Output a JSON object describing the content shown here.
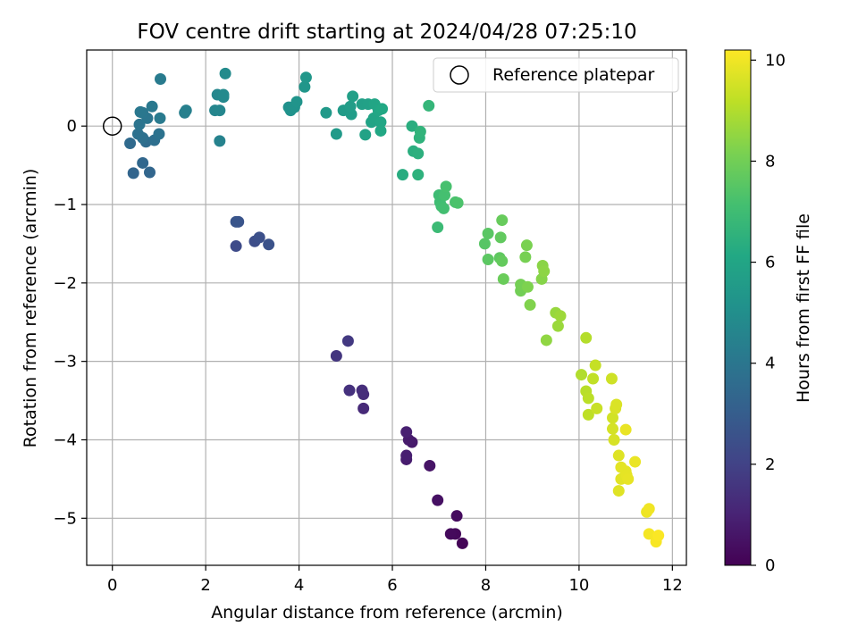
{
  "chart_data": {
    "type": "scatter",
    "title": "FOV centre drift starting at 2024/04/28 07:25:10",
    "xlabel": "Angular distance from reference (arcmin)",
    "ylabel": "Rotation from reference (arcmin)",
    "xlim": [
      -0.55,
      12.3
    ],
    "ylim": [
      -5.6,
      0.97
    ],
    "x_ticks": [
      0,
      2,
      4,
      6,
      8,
      10,
      12
    ],
    "y_ticks": [
      0,
      -1,
      -2,
      -3,
      -4,
      -5
    ],
    "x_tick_labels": [
      "0",
      "2",
      "4",
      "6",
      "8",
      "10",
      "12"
    ],
    "y_tick_labels": [
      "0",
      "−1",
      "−2",
      "−3",
      "−4",
      "−5"
    ],
    "grid": true,
    "colormap": "viridis",
    "colorbar": {
      "label": "Hours from first FF file",
      "range": [
        0,
        10.2
      ],
      "ticks": [
        0,
        2,
        4,
        6,
        8,
        10
      ],
      "tick_labels": [
        "0",
        "2",
        "4",
        "6",
        "8",
        "10"
      ]
    },
    "legend": {
      "position": "top-right",
      "entries": [
        "Reference platepar"
      ]
    },
    "reference_point": {
      "x": 0,
      "y": 0
    },
    "points": [
      {
        "x": 7.5,
        "y": -5.32,
        "t": 0.1
      },
      {
        "x": 7.35,
        "y": -5.2,
        "t": 0.2
      },
      {
        "x": 7.25,
        "y": -5.2,
        "t": 0.25
      },
      {
        "x": 7.38,
        "y": -4.97,
        "t": 0.3
      },
      {
        "x": 6.97,
        "y": -4.77,
        "t": 0.45
      },
      {
        "x": 6.8,
        "y": -4.33,
        "t": 0.55
      },
      {
        "x": 6.42,
        "y": -4.03,
        "t": 0.7
      },
      {
        "x": 6.35,
        "y": -4.0,
        "t": 0.75
      },
      {
        "x": 6.3,
        "y": -4.25,
        "t": 0.8
      },
      {
        "x": 6.3,
        "y": -4.2,
        "t": 0.85
      },
      {
        "x": 6.3,
        "y": -3.9,
        "t": 0.9
      },
      {
        "x": 5.38,
        "y": -3.6,
        "t": 1.2
      },
      {
        "x": 5.38,
        "y": -3.42,
        "t": 1.3
      },
      {
        "x": 5.35,
        "y": -3.37,
        "t": 1.35
      },
      {
        "x": 5.08,
        "y": -3.37,
        "t": 1.45
      },
      {
        "x": 4.8,
        "y": -2.93,
        "t": 1.6
      },
      {
        "x": 5.05,
        "y": -2.74,
        "t": 1.7
      },
      {
        "x": 2.65,
        "y": -1.53,
        "t": 2.3
      },
      {
        "x": 3.05,
        "y": -1.47,
        "t": 2.4
      },
      {
        "x": 3.15,
        "y": -1.42,
        "t": 2.5
      },
      {
        "x": 3.35,
        "y": -1.51,
        "t": 2.55
      },
      {
        "x": 2.7,
        "y": -1.22,
        "t": 2.65
      },
      {
        "x": 2.65,
        "y": -1.22,
        "t": 2.7
      },
      {
        "x": 0.45,
        "y": -0.6,
        "t": 3.3
      },
      {
        "x": 0.8,
        "y": -0.59,
        "t": 3.35
      },
      {
        "x": 0.65,
        "y": -0.47,
        "t": 3.4
      },
      {
        "x": 0.38,
        "y": -0.22,
        "t": 3.5
      },
      {
        "x": 0.72,
        "y": -0.2,
        "t": 3.6
      },
      {
        "x": 0.9,
        "y": -0.18,
        "t": 3.7
      },
      {
        "x": 0.65,
        "y": -0.15,
        "t": 3.75
      },
      {
        "x": 0.55,
        "y": -0.1,
        "t": 3.8
      },
      {
        "x": 1.0,
        "y": -0.1,
        "t": 3.85
      },
      {
        "x": 0.58,
        "y": 0.02,
        "t": 3.9
      },
      {
        "x": 0.75,
        "y": 0.1,
        "t": 3.95
      },
      {
        "x": 0.65,
        "y": 0.17,
        "t": 4.0
      },
      {
        "x": 0.6,
        "y": 0.18,
        "t": 4.05
      },
      {
        "x": 0.85,
        "y": 0.25,
        "t": 4.1
      },
      {
        "x": 1.02,
        "y": 0.1,
        "t": 4.15
      },
      {
        "x": 1.03,
        "y": 0.6,
        "t": 4.2
      },
      {
        "x": 1.55,
        "y": 0.17,
        "t": 4.35
      },
      {
        "x": 1.58,
        "y": 0.2,
        "t": 4.4
      },
      {
        "x": 2.3,
        "y": -0.19,
        "t": 4.5
      },
      {
        "x": 2.2,
        "y": 0.2,
        "t": 4.6
      },
      {
        "x": 2.3,
        "y": 0.2,
        "t": 4.65
      },
      {
        "x": 2.25,
        "y": 0.4,
        "t": 4.7
      },
      {
        "x": 2.38,
        "y": 0.37,
        "t": 4.75
      },
      {
        "x": 2.38,
        "y": 0.4,
        "t": 4.8
      },
      {
        "x": 2.42,
        "y": 0.67,
        "t": 4.85
      },
      {
        "x": 3.78,
        "y": 0.24,
        "t": 5.1
      },
      {
        "x": 3.82,
        "y": 0.2,
        "t": 5.15
      },
      {
        "x": 3.9,
        "y": 0.24,
        "t": 5.2
      },
      {
        "x": 3.95,
        "y": 0.31,
        "t": 5.25
      },
      {
        "x": 4.12,
        "y": 0.5,
        "t": 5.3
      },
      {
        "x": 4.15,
        "y": 0.62,
        "t": 5.35
      },
      {
        "x": 4.58,
        "y": 0.17,
        "t": 5.45
      },
      {
        "x": 4.8,
        "y": -0.1,
        "t": 5.5
      },
      {
        "x": 4.95,
        "y": 0.2,
        "t": 5.55
      },
      {
        "x": 5.12,
        "y": 0.15,
        "t": 5.6
      },
      {
        "x": 5.1,
        "y": 0.25,
        "t": 5.65
      },
      {
        "x": 5.15,
        "y": 0.38,
        "t": 5.7
      },
      {
        "x": 5.35,
        "y": 0.28,
        "t": 5.75
      },
      {
        "x": 5.48,
        "y": 0.28,
        "t": 5.8
      },
      {
        "x": 5.42,
        "y": -0.11,
        "t": 5.85
      },
      {
        "x": 5.55,
        "y": 0.05,
        "t": 5.9
      },
      {
        "x": 5.6,
        "y": 0.1,
        "t": 5.95
      },
      {
        "x": 5.62,
        "y": 0.28,
        "t": 6.0
      },
      {
        "x": 5.7,
        "y": 0.2,
        "t": 6.02
      },
      {
        "x": 5.75,
        "y": 0.05,
        "t": 6.05
      },
      {
        "x": 5.75,
        "y": -0.06,
        "t": 6.08
      },
      {
        "x": 5.78,
        "y": 0.22,
        "t": 6.1
      },
      {
        "x": 6.22,
        "y": -0.62,
        "t": 6.3
      },
      {
        "x": 6.42,
        "y": 0.0,
        "t": 6.35
      },
      {
        "x": 6.45,
        "y": -0.32,
        "t": 6.4
      },
      {
        "x": 6.55,
        "y": -0.35,
        "t": 6.45
      },
      {
        "x": 6.55,
        "y": -0.62,
        "t": 6.5
      },
      {
        "x": 6.58,
        "y": -0.15,
        "t": 6.55
      },
      {
        "x": 6.6,
        "y": -0.07,
        "t": 6.6
      },
      {
        "x": 6.78,
        "y": 0.26,
        "t": 6.7
      },
      {
        "x": 6.97,
        "y": -1.29,
        "t": 6.9
      },
      {
        "x": 7.0,
        "y": -0.88,
        "t": 6.95
      },
      {
        "x": 7.02,
        "y": -0.97,
        "t": 7.0
      },
      {
        "x": 7.05,
        "y": -1.02,
        "t": 7.05
      },
      {
        "x": 7.1,
        "y": -1.05,
        "t": 7.1
      },
      {
        "x": 7.12,
        "y": -0.88,
        "t": 7.15
      },
      {
        "x": 7.15,
        "y": -0.77,
        "t": 7.2
      },
      {
        "x": 7.35,
        "y": -0.97,
        "t": 7.25
      },
      {
        "x": 7.4,
        "y": -0.98,
        "t": 7.3
      },
      {
        "x": 7.98,
        "y": -1.5,
        "t": 7.5
      },
      {
        "x": 8.05,
        "y": -1.37,
        "t": 7.55
      },
      {
        "x": 8.05,
        "y": -1.7,
        "t": 7.6
      },
      {
        "x": 8.3,
        "y": -1.68,
        "t": 7.65
      },
      {
        "x": 8.32,
        "y": -1.42,
        "t": 7.7
      },
      {
        "x": 8.35,
        "y": -1.72,
        "t": 7.75
      },
      {
        "x": 8.35,
        "y": -1.2,
        "t": 7.8
      },
      {
        "x": 8.38,
        "y": -1.95,
        "t": 7.85
      },
      {
        "x": 8.75,
        "y": -2.1,
        "t": 8.0
      },
      {
        "x": 8.75,
        "y": -2.02,
        "t": 8.05
      },
      {
        "x": 8.85,
        "y": -1.67,
        "t": 8.1
      },
      {
        "x": 8.88,
        "y": -1.52,
        "t": 8.15
      },
      {
        "x": 8.9,
        "y": -2.05,
        "t": 8.2
      },
      {
        "x": 8.95,
        "y": -2.28,
        "t": 8.25
      },
      {
        "x": 9.2,
        "y": -1.95,
        "t": 8.35
      },
      {
        "x": 9.22,
        "y": -1.78,
        "t": 8.4
      },
      {
        "x": 9.25,
        "y": -1.85,
        "t": 8.45
      },
      {
        "x": 9.3,
        "y": -2.73,
        "t": 8.5
      },
      {
        "x": 9.5,
        "y": -2.38,
        "t": 8.6
      },
      {
        "x": 9.55,
        "y": -2.55,
        "t": 8.65
      },
      {
        "x": 9.6,
        "y": -2.42,
        "t": 8.7
      },
      {
        "x": 10.05,
        "y": -3.17,
        "t": 9.0
      },
      {
        "x": 10.15,
        "y": -2.7,
        "t": 9.05
      },
      {
        "x": 10.15,
        "y": -3.38,
        "t": 9.1
      },
      {
        "x": 10.2,
        "y": -3.47,
        "t": 9.15
      },
      {
        "x": 10.2,
        "y": -3.68,
        "t": 9.2
      },
      {
        "x": 10.3,
        "y": -3.22,
        "t": 9.25
      },
      {
        "x": 10.35,
        "y": -3.05,
        "t": 9.3
      },
      {
        "x": 10.38,
        "y": -3.6,
        "t": 9.35
      },
      {
        "x": 10.7,
        "y": -3.22,
        "t": 9.45
      },
      {
        "x": 10.72,
        "y": -3.72,
        "t": 9.5
      },
      {
        "x": 10.72,
        "y": -3.86,
        "t": 9.55
      },
      {
        "x": 10.75,
        "y": -4.0,
        "t": 9.6
      },
      {
        "x": 10.78,
        "y": -3.6,
        "t": 9.62
      },
      {
        "x": 10.8,
        "y": -3.55,
        "t": 9.65
      },
      {
        "x": 10.85,
        "y": -4.2,
        "t": 9.7
      },
      {
        "x": 10.85,
        "y": -4.65,
        "t": 9.72
      },
      {
        "x": 10.9,
        "y": -4.5,
        "t": 9.75
      },
      {
        "x": 10.9,
        "y": -4.35,
        "t": 9.78
      },
      {
        "x": 11.0,
        "y": -4.4,
        "t": 9.8
      },
      {
        "x": 11.02,
        "y": -4.45,
        "t": 9.82
      },
      {
        "x": 11.05,
        "y": -4.5,
        "t": 9.85
      },
      {
        "x": 11.0,
        "y": -3.87,
        "t": 9.88
      },
      {
        "x": 11.2,
        "y": -4.28,
        "t": 9.9
      },
      {
        "x": 11.45,
        "y": -4.92,
        "t": 9.95
      },
      {
        "x": 11.5,
        "y": -4.88,
        "t": 10.0
      },
      {
        "x": 11.5,
        "y": -5.2,
        "t": 10.05
      },
      {
        "x": 11.65,
        "y": -5.3,
        "t": 10.1
      },
      {
        "x": 11.7,
        "y": -5.22,
        "t": 10.15
      }
    ]
  }
}
